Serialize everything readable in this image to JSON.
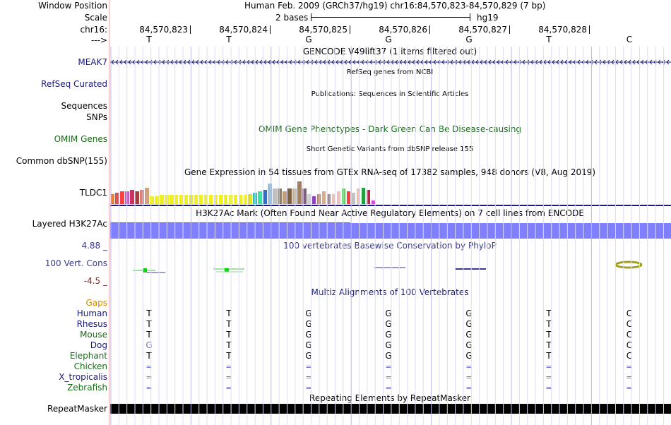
{
  "header": {
    "window_position_label": "Window Position",
    "window_position_value": "Human Feb. 2009 (GRCh37/hg19)   chr16:84,570,823-84,570,829 (7 bp)",
    "scale_label": "Scale",
    "scale_value": "2 bases",
    "scale_assembly": "hg19",
    "chrom_label": "chr16:",
    "strand_label": "--->"
  },
  "ruler": {
    "positions": [
      "84,570,823",
      "84,570,824",
      "84,570,825",
      "84,570,826",
      "84,570,827",
      "84,570,828"
    ],
    "bases": [
      "T",
      "T",
      "G",
      "G",
      "G",
      "T",
      "C"
    ]
  },
  "tracks": {
    "gencode_title": "GENCODE V49lift37 (1 items filtered out)",
    "gencode_gene": "MEAK7",
    "refseq_title": "RefSeq genes from NCBI",
    "refseq_label": "RefSeq Curated",
    "pubs_title": "Publications: Sequences in Scientific Articles",
    "pubs_label1": "Sequences",
    "pubs_label2": "SNPs",
    "omim_title": "OMIM Gene Phenotypes - Dark Green Can Be Disease-causing",
    "omim_label": "OMIM Genes",
    "dbsnp_title": "Short Genetic Variants from dbSNP release 155",
    "dbsnp_label": "Common dbSNP(155)",
    "gtex_title": "Gene Expression in 54 tissues from GTEx RNA-seq of 17382 samples, 948 donors (V8, Aug 2019)",
    "gtex_gene": "TLDC1",
    "h3k27_title": "H3K27Ac Mark (Often Found Near Active Regulatory Elements) on 7 cell lines from ENCODE",
    "h3k27_label": "Layered H3K27Ac",
    "cons_title": "100 vertebrates Basewise Conservation by PhyloP",
    "cons_max": "4.88 _",
    "cons_label": "100 Vert. Cons",
    "cons_min": "-4.5 _",
    "multiz_title": "Multiz Alignments of 100 Vertebrates",
    "gaps_label": "Gaps",
    "repeat_title": "Repeating Elements by RepeatMasker",
    "repeat_label": "RepeatMasker"
  },
  "species": [
    {
      "name": "Human",
      "bases": [
        "T",
        "T",
        "G",
        "G",
        "G",
        "T",
        "C"
      ]
    },
    {
      "name": "Rhesus",
      "bases": [
        "T",
        "T",
        "G",
        "G",
        "G",
        "T",
        "C"
      ]
    },
    {
      "name": "Mouse",
      "bases": [
        "T",
        "T",
        "G",
        "G",
        "G",
        "T",
        "C"
      ]
    },
    {
      "name": "Dog",
      "bases": [
        "G",
        "T",
        "G",
        "G",
        "G",
        "T",
        "C"
      ]
    },
    {
      "name": "Elephant",
      "bases": [
        "T",
        "T",
        "G",
        "G",
        "G",
        "T",
        "C"
      ]
    },
    {
      "name": "Chicken",
      "bases": [
        "=",
        "=",
        "=",
        "=",
        "=",
        "=",
        "="
      ]
    },
    {
      "name": "X_tropicalis",
      "bases": [
        "=",
        "=",
        "=",
        "=",
        "=",
        "=",
        "="
      ]
    },
    {
      "name": "Zebrafish",
      "bases": [
        "=",
        "=",
        "=",
        "=",
        "=",
        "=",
        "="
      ]
    }
  ],
  "gtex_values": [
    0.4,
    0.45,
    0.5,
    0.5,
    0.55,
    0.5,
    0.55,
    0.65,
    0.3,
    0.3,
    0.35,
    0.35,
    0.35,
    0.35,
    0.35,
    0.35,
    0.35,
    0.35,
    0.35,
    0.35,
    0.35,
    0.35,
    0.35,
    0.35,
    0.35,
    0.35,
    0.35,
    0.35,
    0.4,
    0.45,
    0.5,
    0.55,
    0.8,
    0.6,
    0.6,
    0.5,
    0.6,
    0.6,
    0.9,
    0.6,
    0.4,
    0.3,
    0.4,
    0.5,
    0.4,
    0.4,
    0.5,
    0.6,
    0.5,
    0.45,
    0.6,
    0.65,
    0.55,
    0.15
  ],
  "gtex_colors": [
    "#f08030",
    "#e05050",
    "#ff4040",
    "#c060c0",
    "#d03060",
    "#a04040",
    "#e08070",
    "#d0a080",
    "#f0f020",
    "#f0f020",
    "#f0f020",
    "#f0f020",
    "#f0f020",
    "#f0f020",
    "#f0f020",
    "#f0f020",
    "#f0f020",
    "#f0f020",
    "#f0f020",
    "#f0f020",
    "#f0f020",
    "#f0f020",
    "#f0f020",
    "#f0f020",
    "#f0f020",
    "#f0f020",
    "#f0f020",
    "#f0f020",
    "#e0e030",
    "#30c0c0",
    "#40e0a0",
    "#3070d0",
    "#a0c0e0",
    "#c0c0c0",
    "#908070",
    "#c0a080",
    "#806040",
    "#c0b0a0",
    "#a08060",
    "#806080",
    "#d0d0d0",
    "#9040c0",
    "#c08060",
    "#d0b090",
    "#a090a0",
    "#f0c0b0",
    "#f0c0c0",
    "#60d060",
    "#f04040",
    "#c0c0c0",
    "#f0c0a0",
    "#20a040",
    "#c02040",
    "#e040e0"
  ],
  "colors": {
    "navy": "#1a1a7a",
    "green": "#1a6a1a",
    "h3k27": "#8080ff",
    "repeat": "#000000"
  }
}
